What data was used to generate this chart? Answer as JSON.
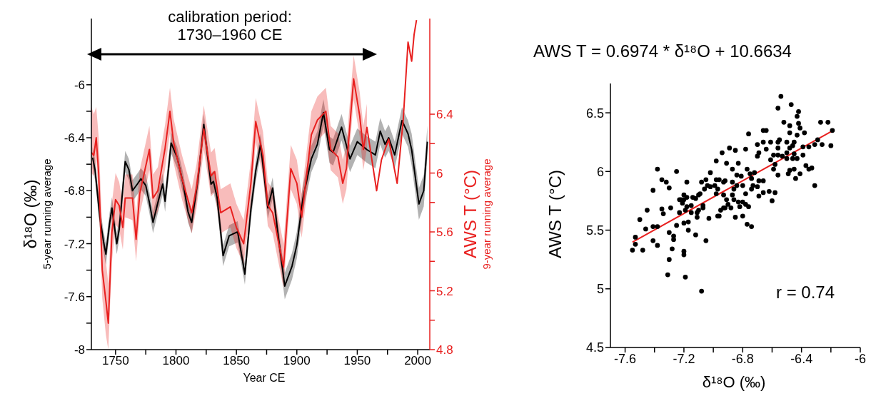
{
  "chart_data": [
    {
      "type": "line",
      "xlabel": "Year CE",
      "ylabel": "δ¹⁸O (‰)\n5-year running average",
      "y2label": "AWS T (°C)\n9-year running average",
      "annotations": [
        "calibration period:\n1730–1960 CE"
      ],
      "xlim": [
        1730,
        2010
      ],
      "xticks": [
        1750,
        {
          "value": 1775,
          "label": null
        },
        1800,
        {
          "value": 1825,
          "label": null
        },
        1850,
        {
          "value": 1875,
          "label": null
        },
        1900,
        {
          "value": 1925,
          "label": null
        },
        1950,
        {
          "value": 1975,
          "label": null
        },
        2000
      ],
      "ylim": [
        -8,
        -5.5
      ],
      "yticks": [
        -8,
        {
          "value": -7.8,
          "label": null
        },
        -7.6,
        {
          "value": -7.4,
          "label": null
        },
        -7.2,
        {
          "value": -7,
          "label": null
        },
        -6.8,
        {
          "value": -6.6,
          "label": null
        },
        -6.4,
        {
          "value": -6.2,
          "label": null
        },
        -6
      ],
      "y2lim": [
        4.8,
        7.05
      ],
      "y2ticks": [
        4.8,
        {
          "value": 5,
          "label": null
        },
        5.2,
        {
          "value": 5.4,
          "label": null
        },
        5.6,
        {
          "value": 5.8,
          "label": null
        },
        6,
        {
          "value": 6.2,
          "label": null
        },
        6.4
      ],
      "series": [
        {
          "color": "#000000",
          "x": [
            1731,
            1733,
            1737,
            1740,
            1742,
            1745,
            1747,
            1751,
            1753,
            1758,
            1761,
            1764,
            1768,
            1771,
            1775,
            1778,
            1781,
            1785,
            1789,
            1791,
            1796,
            1801,
            1806,
            1810,
            1813,
            1818,
            1823,
            1829,
            1831,
            1834,
            1839,
            1844,
            1851,
            1857,
            1862,
            1866,
            1870,
            1876,
            1880,
            1884,
            1890,
            1896,
            1900,
            1905,
            1912,
            1917,
            1922,
            1927,
            1930,
            1937,
            1944,
            1950,
            1958,
            1965,
            1969,
            1973,
            1976,
            1981,
            1987,
            1992,
            1995,
            2001,
            2005,
            2008
          ],
          "values": [
            -6.55,
            -6.64,
            -7.0,
            -7.18,
            -7.28,
            -7.05,
            -6.93,
            -7.2,
            -7.09,
            -6.58,
            -6.64,
            -6.8,
            -6.75,
            -6.71,
            -6.76,
            -6.89,
            -7.04,
            -6.89,
            -6.75,
            -6.88,
            -6.44,
            -6.55,
            -6.75,
            -6.96,
            -7.04,
            -6.73,
            -6.3,
            -6.75,
            -6.73,
            -6.85,
            -7.29,
            -7.14,
            -7.11,
            -7.43,
            -6.94,
            -6.65,
            -6.45,
            -6.93,
            -6.78,
            -7.1,
            -7.52,
            -7.37,
            -7.21,
            -6.86,
            -6.56,
            -6.45,
            -6.21,
            -6.49,
            -6.51,
            -6.32,
            -6.56,
            -6.43,
            -6.49,
            -6.53,
            -6.35,
            -6.45,
            -6.4,
            -6.53,
            -6.27,
            -6.37,
            -6.49,
            -6.9,
            -6.8,
            -6.43
          ],
          "lower": [
            -6.63,
            -6.72,
            -7.08,
            -7.26,
            -7.36,
            -7.13,
            -7.01,
            -7.28,
            -7.17,
            -6.66,
            -6.72,
            -6.88,
            -6.83,
            -6.79,
            -6.84,
            -6.97,
            -7.12,
            -6.97,
            -6.83,
            -6.96,
            -6.52,
            -6.63,
            -6.83,
            -7.04,
            -7.12,
            -6.81,
            -6.38,
            -6.83,
            -6.81,
            -6.93,
            -7.37,
            -7.22,
            -7.19,
            -7.51,
            -7.02,
            -6.73,
            -6.53,
            -7.01,
            -6.86,
            -7.18,
            -7.62,
            -7.47,
            -7.31,
            -6.96,
            -6.66,
            -6.55,
            -6.31,
            -6.59,
            -6.61,
            -6.42,
            -6.66,
            -6.53,
            -6.59,
            -6.63,
            -6.45,
            -6.55,
            -6.5,
            -6.63,
            -6.37,
            -6.47,
            -6.61,
            -7.02,
            -6.92,
            -6.55
          ],
          "upper": [
            -6.47,
            -6.56,
            -6.92,
            -7.1,
            -7.2,
            -6.97,
            -6.85,
            -7.12,
            -7.01,
            -6.5,
            -6.56,
            -6.72,
            -6.67,
            -6.63,
            -6.68,
            -6.81,
            -6.96,
            -6.81,
            -6.67,
            -6.8,
            -6.36,
            -6.47,
            -6.67,
            -6.88,
            -6.96,
            -6.65,
            -6.22,
            -6.67,
            -6.65,
            -6.77,
            -7.21,
            -7.06,
            -7.03,
            -7.35,
            -6.86,
            -6.57,
            -6.37,
            -6.85,
            -6.7,
            -7.02,
            -7.42,
            -7.27,
            -7.11,
            -6.76,
            -6.46,
            -6.35,
            -6.11,
            -6.39,
            -6.41,
            -6.22,
            -6.46,
            -6.33,
            -6.39,
            -6.43,
            -6.25,
            -6.35,
            -6.3,
            -6.43,
            -6.17,
            -6.27,
            -6.37,
            -6.78,
            -6.68,
            -6.31
          ]
        },
        {
          "color": "#e8201f",
          "axis": "y2",
          "x": [
            1730,
            1732,
            1734,
            1736,
            1739,
            1742,
            1744,
            1747,
            1750,
            1753,
            1756,
            1758,
            1764,
            1767,
            1770,
            1778,
            1781,
            1785,
            1791,
            1795,
            1798,
            1805,
            1813,
            1817,
            1823,
            1829,
            1832,
            1837,
            1845,
            1850,
            1856,
            1862,
            1866,
            1872,
            1876,
            1880,
            1889,
            1895,
            1900,
            1904,
            1912,
            1917,
            1924,
            1928,
            1934,
            1938,
            1941,
            1947,
            1952,
            1955,
            1958,
            1966,
            1970,
            1976,
            1983,
            1988,
            1992,
            1995,
            1997,
            1999
          ],
          "values": [
            6.14,
            6.12,
            6.24,
            6.0,
            5.34,
            5.13,
            4.98,
            5.6,
            5.82,
            5.78,
            5.63,
            5.83,
            5.83,
            5.55,
            5.86,
            6.16,
            5.83,
            5.88,
            6.17,
            6.42,
            6.21,
            5.96,
            5.73,
            5.9,
            6.3,
            5.98,
            6.01,
            5.73,
            5.77,
            5.63,
            5.52,
            5.93,
            6.35,
            6.12,
            5.78,
            5.73,
            5.36,
            6.03,
            5.93,
            5.7,
            6.26,
            6.36,
            6.42,
            6.16,
            6.11,
            5.93,
            6.03,
            6.64,
            6.39,
            6.16,
            6.31,
            5.88,
            6.09,
            6.23,
            5.93,
            6.36,
            6.89,
            6.76,
            6.94,
            7.04
          ],
          "lower": [
            6.0,
            5.98,
            6.1,
            5.85,
            5.15,
            4.9,
            4.8,
            5.4,
            5.65,
            5.62,
            5.48,
            5.7,
            5.68,
            5.4,
            5.72,
            6.02,
            5.68,
            5.74,
            6.03,
            6.27,
            6.07,
            5.82,
            5.59,
            5.76,
            6.16,
            5.84,
            5.87,
            5.59,
            5.63,
            5.49,
            5.38,
            5.79,
            6.21,
            5.98,
            5.64,
            5.59,
            5.22,
            5.89,
            5.79,
            5.56,
            6.12,
            6.22,
            6.28,
            6.02,
            5.97,
            5.79,
            5.89,
            6.5,
            6.25,
            6.02,
            6.17,
            null,
            null,
            null,
            null,
            null,
            null,
            null,
            null,
            null
          ],
          "upper": [
            6.45,
            6.4,
            6.45,
            6.25,
            5.6,
            5.4,
            5.25,
            5.8,
            6.0,
            5.94,
            5.79,
            5.99,
            5.99,
            5.71,
            6.02,
            6.32,
            5.99,
            6.04,
            6.33,
            6.58,
            6.37,
            6.12,
            5.89,
            6.06,
            6.46,
            6.14,
            6.17,
            5.89,
            5.93,
            5.79,
            5.68,
            6.09,
            6.51,
            6.28,
            5.94,
            5.89,
            5.52,
            6.19,
            6.09,
            5.86,
            6.42,
            6.52,
            6.58,
            6.32,
            6.27,
            6.09,
            6.19,
            6.8,
            6.55,
            6.32,
            6.47,
            null,
            null,
            null,
            null,
            null,
            null,
            null,
            null,
            null
          ]
        }
      ]
    },
    {
      "type": "scatter",
      "title": "AWS T = 0.6974 * δ¹⁸O + 10.6634",
      "xlabel": "δ¹⁸O (‰)",
      "ylabel": "AWS T (°C)",
      "annotations": [
        "r = 0.74"
      ],
      "xlim": [
        -7.7,
        -6
      ],
      "xticks": [
        -7.6,
        {
          "value": -7.4,
          "label": null
        },
        -7.2,
        {
          "value": -7,
          "label": null
        },
        -6.8,
        {
          "value": -6.6,
          "label": null
        },
        -6.4,
        {
          "value": -6.2,
          "label": null
        },
        -6
      ],
      "ylim": [
        4.5,
        6.75
      ],
      "yticks": [
        4.5,
        5,
        5.5,
        6,
        6.5
      ],
      "series": [
        {
          "color": "#000000",
          "marker": "circle",
          "x": [
            -6.54,
            -6.56,
            -6.47,
            -6.42,
            -6.43,
            -6.42,
            -6.41,
            -6.52,
            -6.48,
            -6.27,
            -6.22,
            -6.19,
            -6.2,
            -6.26,
            -6.31,
            -6.29,
            -6.38,
            -6.43,
            -6.48,
            -6.5,
            -6.55,
            -6.56,
            -6.45,
            -6.46,
            -6.48,
            -6.5,
            -6.56,
            -6.59,
            -6.56,
            -6.53,
            -6.5,
            -6.46,
            -6.43,
            -6.45,
            -6.39,
            -6.35,
            -6.39,
            -6.58,
            -6.61,
            -6.59,
            -6.56,
            -6.49,
            -6.48,
            -6.45,
            -6.44,
            -6.41,
            -6.37,
            -6.35,
            -6.33,
            -6.31,
            -6.76,
            -6.66,
            -6.64,
            -6.7,
            -6.66,
            -6.61,
            -6.64,
            -6.69,
            -6.7,
            -6.78,
            -6.85,
            -6.89,
            -6.94,
            -6.98,
            -6.91,
            -6.87,
            -6.84,
            -6.83,
            -6.81,
            -6.77,
            -6.75,
            -6.72,
            -6.74,
            -6.69,
            -6.66,
            -6.73,
            -6.7,
            -6.66,
            -6.62,
            -6.58,
            -6.6,
            -6.69,
            -6.74,
            -6.78,
            -6.8,
            -6.84,
            -6.86,
            -6.87,
            -6.86,
            -6.83,
            -6.8,
            -6.78,
            -6.76,
            -6.8,
            -6.85,
            -6.82,
            -6.88,
            -6.9,
            -6.92,
            -6.93,
            -6.95,
            -6.96,
            -6.91,
            -6.93,
            -6.97,
            -6.98,
            -7.02,
            -7.04,
            -7.05,
            -7.08,
            -7.06,
            -7.09,
            -7.1,
            -7.12,
            -7.14,
            -7.18,
            -7.2,
            -7.22,
            -7.21,
            -7.18,
            -7.15,
            -7.15,
            -7.11,
            -7.1,
            -7.07,
            -7.07,
            -7.02,
            -6.98,
            -6.96,
            -6.99,
            -6.93,
            -6.92,
            -6.87,
            -7.38,
            -7.25,
            -7.35,
            -7.32,
            -7.3,
            -7.41,
            -7.18,
            -7.45,
            -7.5,
            -7.35,
            -7.34,
            -7.29,
            -7.23,
            -7.2,
            -7.23,
            -7.19,
            -7.17,
            -7.2,
            -7.25,
            -7.11,
            -7.03,
            -6.97,
            -6.77,
            -6.74,
            -7.41,
            -7.38,
            -7.46,
            -7.53,
            -7.55,
            -7.53,
            -7.48,
            -7.41,
            -7.38,
            -7.3,
            -7.27,
            -7.27,
            -7.28,
            -7.3,
            -7.2,
            -7.2,
            -7.17,
            -7.12,
            -7.05,
            -7.31,
            -7.19,
            -7.08
          ],
          "values": [
            6.64,
            6.54,
            6.57,
            6.51,
            6.47,
            6.41,
            6.37,
            6.42,
            6.39,
            6.42,
            6.42,
            6.35,
            6.22,
            6.23,
            6.23,
            6.27,
            6.33,
            6.31,
            6.33,
            6.25,
            6.27,
            6.25,
            6.25,
            6.22,
            6.2,
            6.16,
            6.2,
            6.14,
            6.14,
            6.13,
            6.11,
            6.11,
            6.11,
            6.15,
            6.14,
            6.21,
            6.21,
            6.06,
            6.1,
            6.02,
            5.97,
            5.98,
            6.01,
            6.02,
            5.94,
            5.98,
            6.05,
            6.02,
            6.03,
            5.88,
            6.32,
            6.35,
            6.35,
            6.23,
            6.25,
            6.25,
            6.19,
            6.16,
            6.13,
            6.19,
            6.18,
            6.2,
            6.16,
            6.09,
            6.07,
            6.02,
            5.97,
            6.07,
            5.96,
            6.02,
            5.98,
            5.99,
            5.94,
            5.92,
            5.92,
            5.88,
            5.87,
            5.82,
            5.83,
            5.82,
            5.75,
            5.79,
            5.85,
            5.81,
            5.88,
            5.88,
            5.85,
            5.8,
            5.76,
            5.74,
            5.74,
            5.72,
            5.7,
            5.62,
            5.61,
            5.7,
            5.69,
            5.72,
            5.69,
            5.69,
            5.67,
            5.62,
            5.76,
            5.8,
            5.85,
            5.81,
            5.87,
            5.88,
            5.93,
            5.91,
            5.85,
            5.81,
            5.8,
            5.77,
            5.78,
            5.78,
            5.8,
            5.76,
            5.73,
            5.7,
            5.71,
            5.65,
            5.65,
            5.67,
            5.69,
            5.71,
            5.99,
            5.93,
            5.93,
            5.88,
            5.91,
            5.92,
            5.91,
            6.02,
            6.0,
            5.93,
            5.91,
            5.86,
            5.84,
            5.91,
            5.67,
            5.59,
            5.68,
            5.64,
            5.69,
            5.65,
            5.76,
            5.76,
            5.67,
            5.57,
            5.56,
            5.54,
            5.61,
            5.6,
            5.62,
            5.55,
            5.53,
            5.53,
            5.53,
            5.51,
            5.44,
            5.33,
            5.38,
            5.33,
            5.41,
            5.37,
            5.48,
            5.45,
            5.42,
            5.34,
            5.25,
            5.32,
            5.29,
            5.5,
            5.46,
            5.41,
            5.12,
            5.1,
            4.98
          ]
        },
        {
          "type": "line",
          "color": "#e8201f",
          "x": [
            -7.55,
            -6.185
          ],
          "values": [
            5.398,
            6.35
          ]
        }
      ]
    }
  ]
}
